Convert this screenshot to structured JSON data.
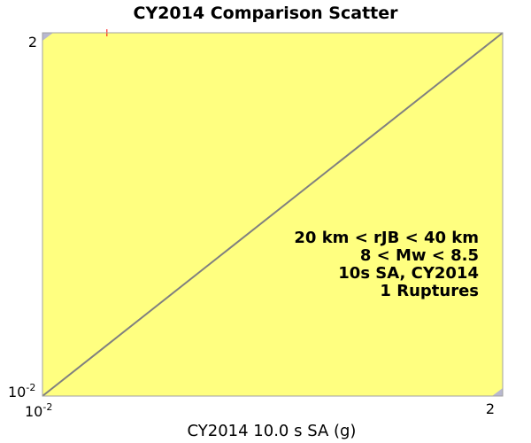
{
  "chart_data": {
    "type": "scatter",
    "title": "CY2014 Comparison Scatter",
    "xlabel": "CY2014 10.0 s SA (g)",
    "ylabel": "",
    "x_scale": "log",
    "y_scale": "log",
    "xlim": [
      0.01,
      2
    ],
    "ylim": [
      0.01,
      2
    ],
    "x_ticks": [
      {
        "base": "10",
        "exp": "-2"
      },
      {
        "base": "2",
        "exp": ""
      }
    ],
    "y_ticks": [
      {
        "base": "10",
        "exp": "-2"
      },
      {
        "base": "2",
        "exp": ""
      }
    ],
    "reference_line": {
      "from": [
        0.01,
        0.01
      ],
      "to": [
        2,
        2
      ],
      "color": "#808080"
    },
    "series": [
      {
        "points": [
          {
            "x": 0.021,
            "y": 2.0
          }
        ],
        "marker": "plus",
        "color": "#ff0000"
      }
    ],
    "annotations": [
      "20 km < rJB < 40 km",
      "8 < Mw < 8.5",
      "10s SA, CY2014",
      "1 Ruptures"
    ],
    "plot_background": "#ffff80",
    "grid": false,
    "legend": "none"
  }
}
